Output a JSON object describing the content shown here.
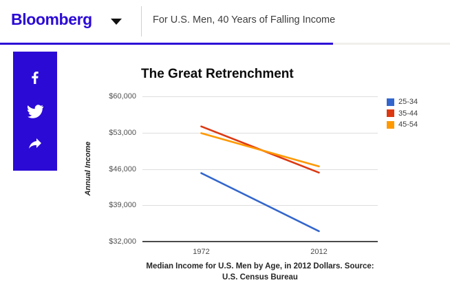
{
  "colors": {
    "brand": "#2B0AD6",
    "progress_track": "#f1efec"
  },
  "header": {
    "logo": "Bloomberg",
    "title": "For U.S. Men, 40 Years of Falling Income"
  },
  "progress": {
    "percent": 74
  },
  "share_sidebar": {
    "icons": [
      "facebook-icon",
      "twitter-icon",
      "share-arrow-icon"
    ]
  },
  "chart_data": {
    "type": "line",
    "title": "The Great Retrenchment",
    "ylabel": "Annual Income",
    "xlabel": "",
    "categories": [
      "1972",
      "2012"
    ],
    "series": [
      {
        "name": "25-34",
        "color": "#3366CC",
        "values": [
          45200,
          34000
        ]
      },
      {
        "name": "35-44",
        "color": "#DC3912",
        "values": [
          54200,
          45300
        ]
      },
      {
        "name": "45-54",
        "color": "#FF9900",
        "values": [
          52900,
          46500
        ]
      }
    ],
    "ylim": [
      32000,
      60000
    ],
    "yticks": [
      32000,
      39000,
      46000,
      53000,
      60000
    ],
    "ytick_labels": [
      "$32,000",
      "$39,000",
      "$46,000",
      "$53,000",
      "$60,000"
    ],
    "grid": true,
    "legend_position": "right"
  },
  "caption": "Median Income for U.S. Men by Age, in 2012 Dollars. Source: U.S. Census Bureau"
}
